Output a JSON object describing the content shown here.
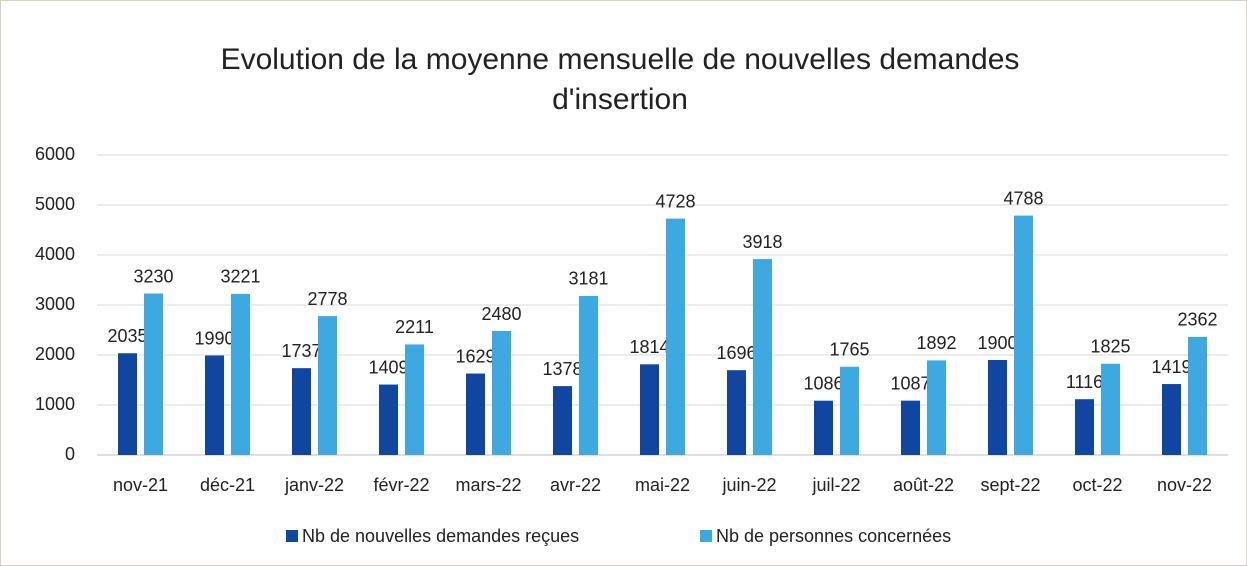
{
  "chart_data": {
    "type": "bar",
    "title": "Evolution de la moyenne mensuelle de nouvelles demandes d'insertion",
    "categories": [
      "nov-21",
      "déc-21",
      "janv-22",
      "févr-22",
      "mars-22",
      "avr-22",
      "mai-22",
      "juin-22",
      "juil-22",
      "août-22",
      "sept-22",
      "oct-22",
      "nov-22"
    ],
    "series": [
      {
        "name": "Nb de nouvelles demandes reçues",
        "color": "#1046a0",
        "values": [
          2035,
          1990,
          1737,
          1409,
          1629,
          1378,
          1814,
          1696,
          1086,
          1087,
          1900,
          1116,
          1419
        ]
      },
      {
        "name": "Nb de personnes concernées",
        "color": "#3ea9e0",
        "values": [
          3230,
          3221,
          2778,
          2211,
          2480,
          3181,
          4728,
          3918,
          1765,
          1892,
          4788,
          1825,
          2362
        ]
      }
    ],
    "ylim": [
      0,
      6000
    ],
    "yticks": [
      0,
      1000,
      2000,
      3000,
      4000,
      5000,
      6000
    ],
    "grid": true,
    "legend": "bottom"
  }
}
